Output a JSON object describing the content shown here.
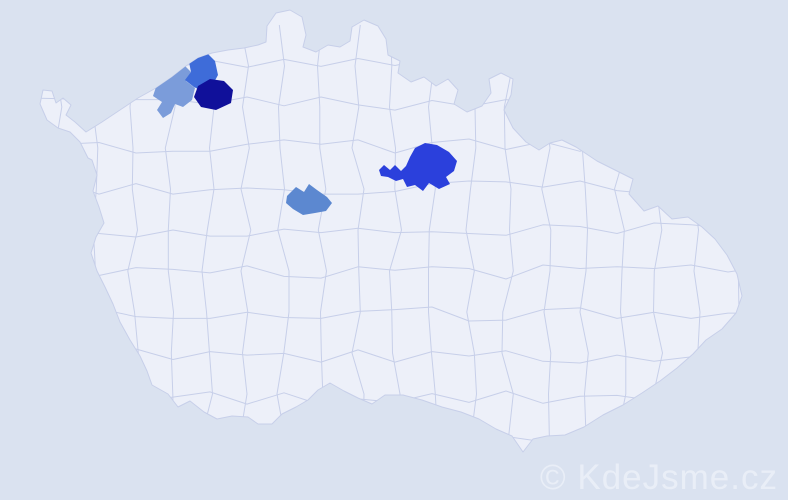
{
  "watermark": {
    "text": "© KdeJsme.cz"
  },
  "map": {
    "colors": {
      "background": "#dae2f0",
      "land": "#edf0f9",
      "border": "#c7cfe9",
      "watermark": "#e9eef7"
    },
    "districts": [
      {
        "id": "district-northwest-light",
        "color": "#7b9cda"
      },
      {
        "id": "district-northwest-medium",
        "color": "#3e6cd9"
      },
      {
        "id": "district-northwest-dark",
        "color": "#10109a"
      },
      {
        "id": "district-central",
        "color": "#5c88d0"
      },
      {
        "id": "district-east",
        "color": "#2b40dc"
      }
    ]
  }
}
